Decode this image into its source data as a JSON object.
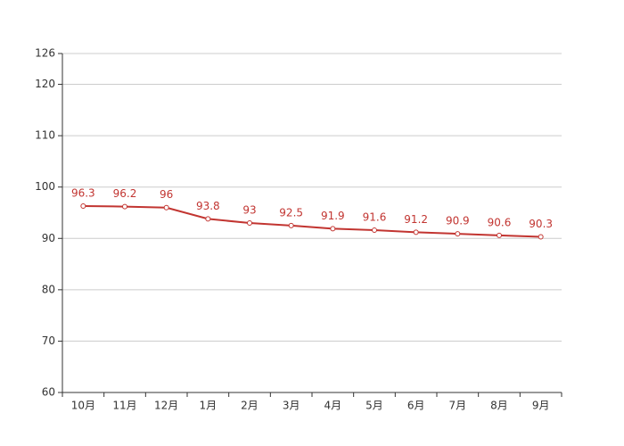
{
  "chart_data": {
    "type": "line",
    "categories": [
      "10月",
      "11月",
      "12月",
      "1月",
      "2月",
      "3月",
      "4月",
      "5月",
      "6月",
      "7月",
      "8月",
      "9月"
    ],
    "values": [
      96.3,
      96.2,
      96,
      93.8,
      93,
      92.5,
      91.9,
      91.6,
      91.2,
      90.9,
      90.6,
      90.3
    ],
    "color": "#c23531",
    "ylim": [
      60,
      126
    ],
    "yticks": [
      60,
      70,
      80,
      90,
      100,
      110,
      120,
      126
    ],
    "grid": true
  }
}
